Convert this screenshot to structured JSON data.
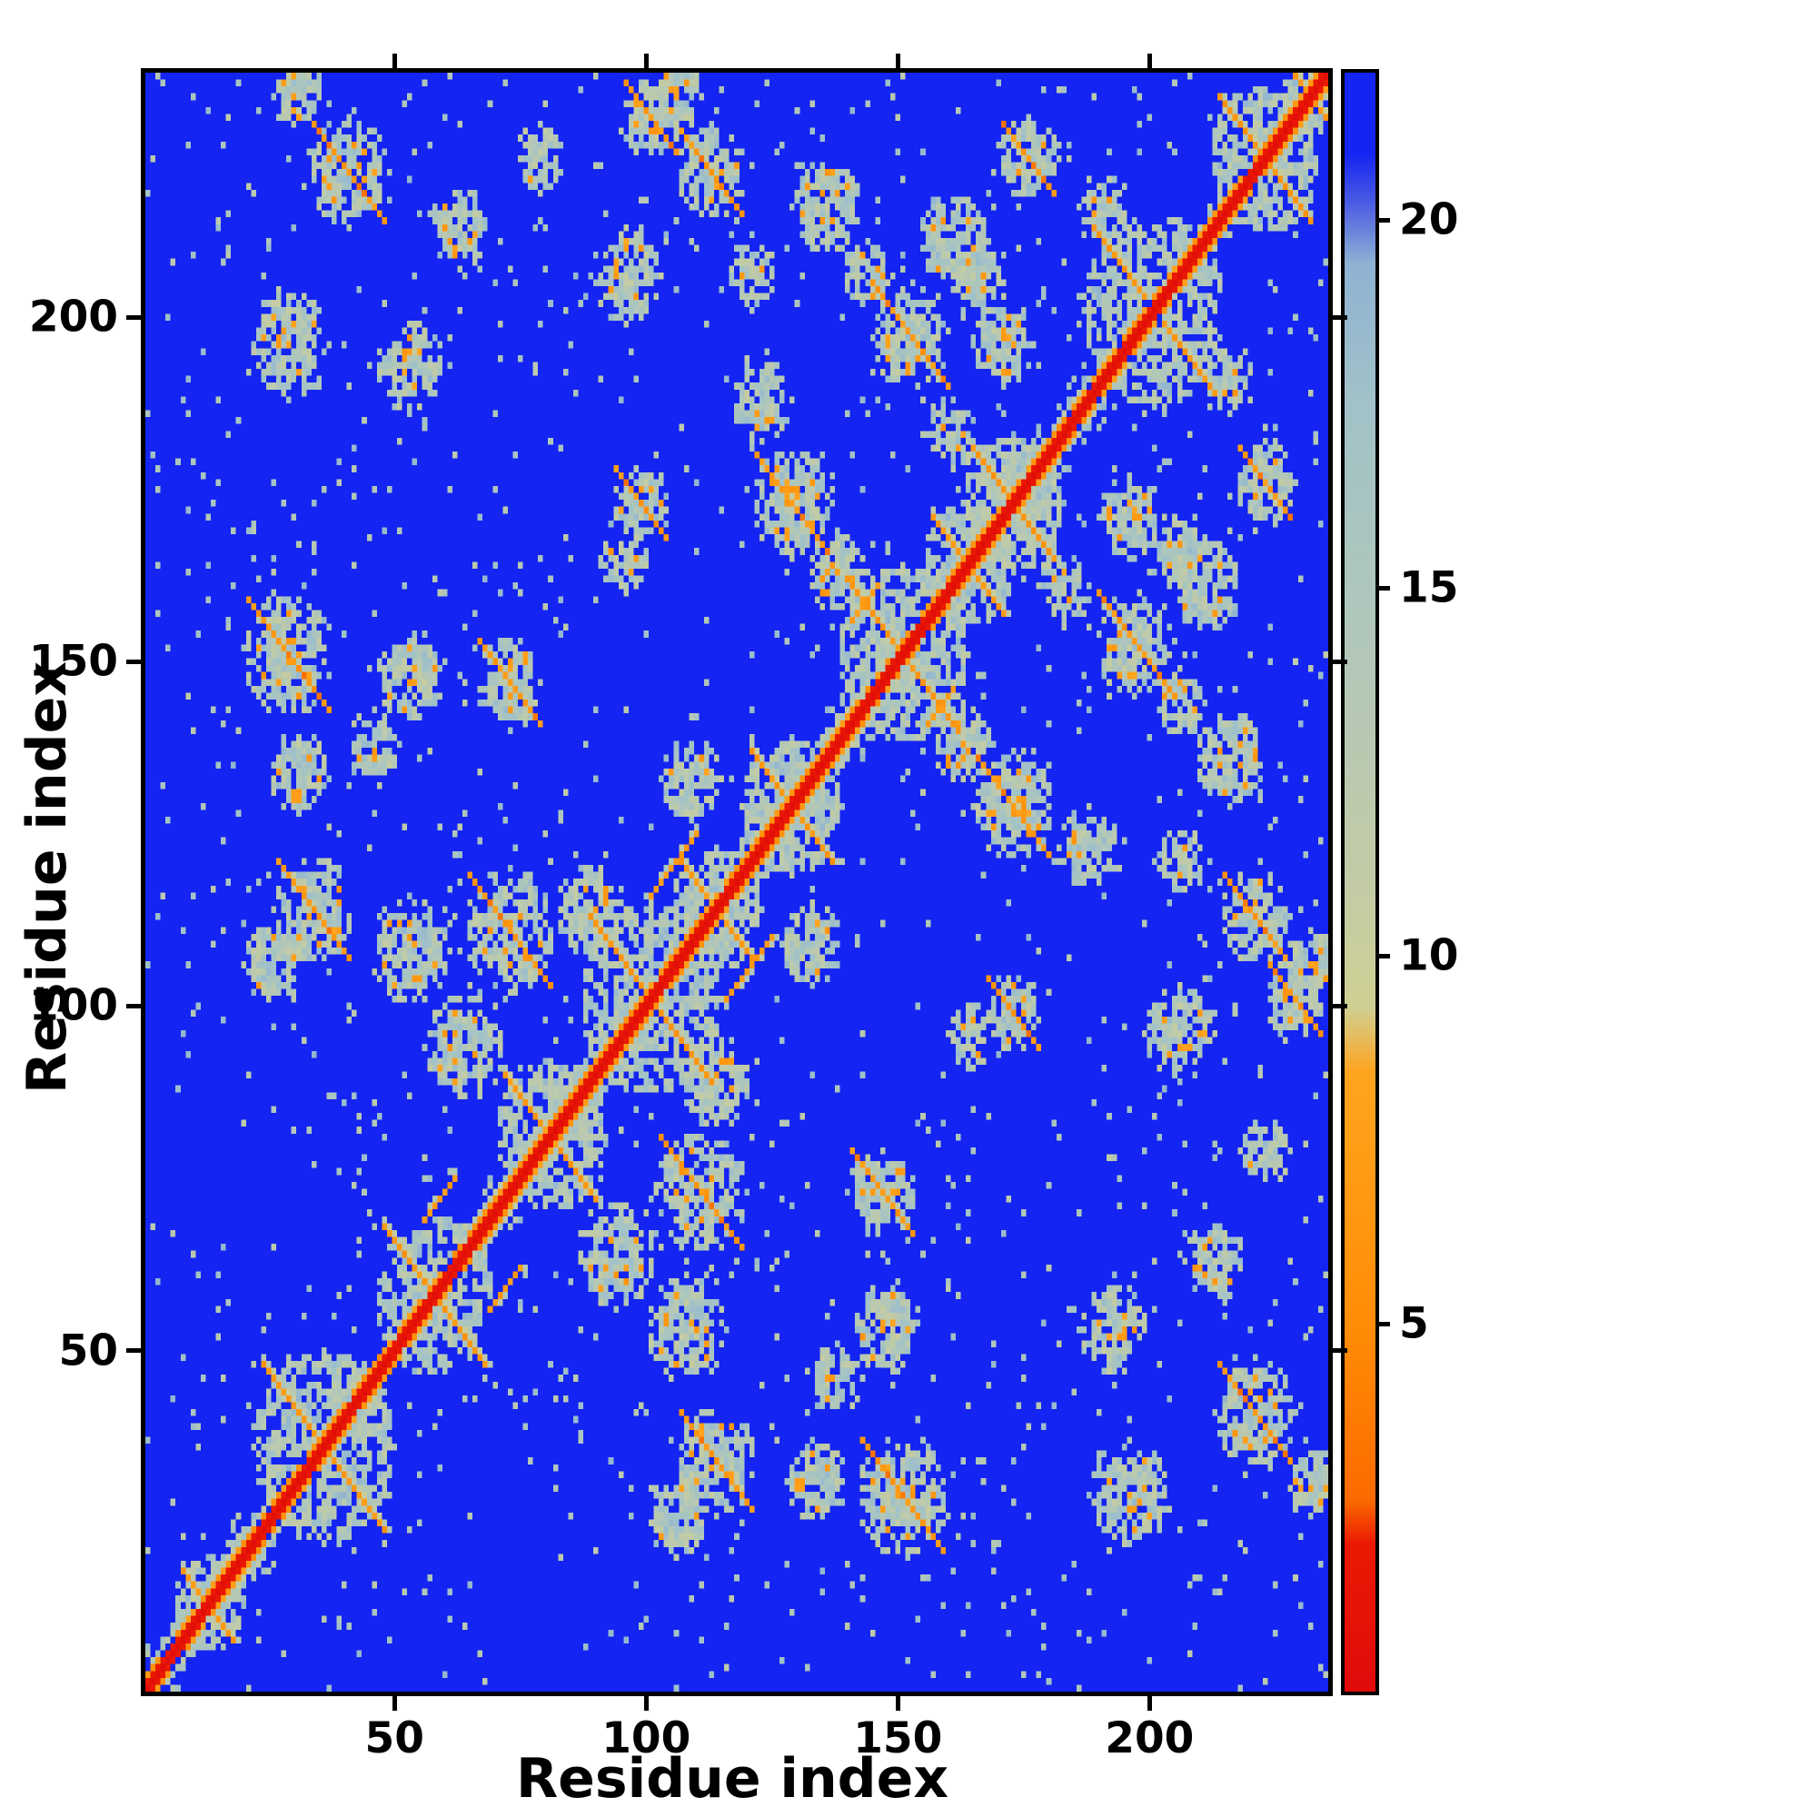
{
  "chart_data": {
    "type": "heatmap",
    "title": "",
    "xlabel": "Residue index",
    "ylabel": "Residue index",
    "x_range": [
      1,
      235
    ],
    "y_range": [
      1,
      235
    ],
    "x_ticks": [
      50,
      100,
      150,
      200
    ],
    "y_ticks": [
      50,
      100,
      150,
      200
    ],
    "grid": false,
    "legend": "none",
    "colorbar": {
      "position": "right",
      "orientation": "vertical",
      "range": [
        0,
        22
      ],
      "ticks": [
        5,
        10,
        15,
        20
      ]
    },
    "colormap": {
      "name": "distance-map-red-close-blue-far",
      "stops": [
        {
          "value": 0,
          "color": "#e00b0b"
        },
        {
          "value": 2.0,
          "color": "#ea1902"
        },
        {
          "value": 2.6,
          "color": "#fb6a00"
        },
        {
          "value": 5.0,
          "color": "#ff8d05"
        },
        {
          "value": 8.4,
          "color": "#ffa41e"
        },
        {
          "value": 9.3,
          "color": "#cfd093"
        },
        {
          "value": 11,
          "color": "#c2cba6"
        },
        {
          "value": 14,
          "color": "#b2c7b8"
        },
        {
          "value": 17.5,
          "color": "#a2c2c8"
        },
        {
          "value": 19.4,
          "color": "#8fb2d2"
        },
        {
          "value": 20.2,
          "color": "#4e5fe2"
        },
        {
          "value": 20.9,
          "color": "#1424f2"
        },
        {
          "value": 22,
          "color": "#1424f2"
        }
      ]
    },
    "matrix": {
      "n": 235,
      "symmetric": true,
      "background_value": 22,
      "diagonal_value": 0.4,
      "seed": 1234,
      "hairpins": [
        [
          12,
          5
        ],
        [
          35,
          12
        ],
        [
          57,
          10
        ],
        [
          80,
          9
        ],
        [
          100,
          12
        ],
        [
          113,
          7
        ],
        [
          128,
          8
        ],
        [
          150,
          11
        ],
        [
          163,
          7
        ],
        [
          172,
          8
        ],
        [
          200,
          12
        ],
        [
          222,
          9
        ],
        [
          231,
          4
        ]
      ],
      "parallel_streaks": [
        [
          100,
          115,
          10
        ],
        [
          55,
          68,
          7
        ],
        [
          140,
          155,
          6
        ]
      ],
      "contact_clusters": [
        [
          28,
          150,
          9,
          1
        ],
        [
          52,
          147,
          7,
          0
        ],
        [
          72,
          146,
          7,
          1
        ],
        [
          45,
          137,
          5,
          0
        ],
        [
          30,
          133,
          6,
          0
        ],
        [
          33,
          113,
          8,
          1
        ],
        [
          52,
          107,
          8,
          0
        ],
        [
          72,
          110,
          9,
          1
        ],
        [
          63,
          93,
          8,
          0
        ],
        [
          88,
          113,
          7,
          0
        ],
        [
          25,
          105,
          6,
          0
        ],
        [
          108,
          132,
          6,
          0
        ],
        [
          28,
          195,
          8,
          0
        ],
        [
          52,
          192,
          7,
          0
        ],
        [
          40,
          220,
          8,
          1
        ],
        [
          62,
          212,
          6,
          0
        ],
        [
          30,
          231,
          5,
          0
        ],
        [
          78,
          222,
          5,
          0
        ],
        [
          98,
          172,
          6,
          1
        ],
        [
          95,
          205,
          7,
          0
        ],
        [
          112,
          220,
          7,
          1
        ],
        [
          105,
          231,
          5,
          0
        ],
        [
          95,
          163,
          5,
          0
        ],
        [
          100,
          228,
          6,
          1
        ],
        [
          128,
          172,
          8,
          1
        ],
        [
          137,
          162,
          6,
          0
        ],
        [
          122,
          187,
          6,
          0
        ],
        [
          152,
          196,
          8,
          1
        ],
        [
          143,
          205,
          5,
          0
        ],
        [
          160,
          182,
          5,
          0
        ],
        [
          135,
          215,
          7,
          0
        ],
        [
          120,
          205,
          5,
          0
        ],
        [
          160,
          210,
          7,
          0
        ],
        [
          170,
          195,
          6,
          0
        ],
        [
          165,
          205,
          6,
          0
        ],
        [
          175,
          222,
          6,
          1
        ],
        [
          190,
          215,
          5,
          0
        ]
      ],
      "speckle_count": 700
    }
  }
}
